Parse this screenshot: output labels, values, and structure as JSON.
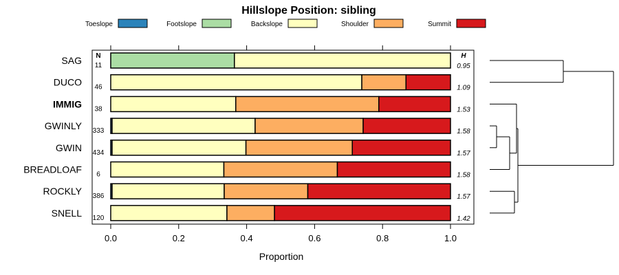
{
  "chart_data": {
    "type": "bar",
    "orientation": "horizontal",
    "stacked": true,
    "title": "Hillslope Position: sibling",
    "xlabel": "Proportion",
    "xlim": [
      0,
      1
    ],
    "xticks": [
      "0.0",
      "0.2",
      "0.4",
      "0.6",
      "0.8",
      "1.0"
    ],
    "n_header": "N",
    "h_header": "H",
    "legend_placement": "top",
    "legend": [
      {
        "name": "Toeslope",
        "color": "#2b83ba"
      },
      {
        "name": "Footslope",
        "color": "#abdda4"
      },
      {
        "name": "Backslope",
        "color": "#ffffbf"
      },
      {
        "name": "Shoulder",
        "color": "#fdae61"
      },
      {
        "name": "Summit",
        "color": "#d7191c"
      }
    ],
    "categories": [
      "SAG",
      "DUCO",
      "IMMIG",
      "GWINLY",
      "GWIN",
      "BREADLOAF",
      "ROCKLY",
      "SNELL"
    ],
    "highlighted_category": "IMMIG",
    "n": [
      "11",
      "46",
      "38",
      "333",
      "434",
      "6",
      "386",
      "120"
    ],
    "h": [
      "0.95",
      "1.09",
      "1.53",
      "1.58",
      "1.57",
      "1.58",
      "1.57",
      "1.42"
    ],
    "series": [
      {
        "name": "Toeslope",
        "values": [
          0,
          0,
          0,
          0.004,
          0.004,
          0,
          0.004,
          0
        ]
      },
      {
        "name": "Footslope",
        "values": [
          0.364,
          0,
          0,
          0,
          0,
          0,
          0,
          0
        ]
      },
      {
        "name": "Backslope",
        "values": [
          0.636,
          0.739,
          0.368,
          0.421,
          0.394,
          0.333,
          0.33,
          0.342
        ]
      },
      {
        "name": "Shoulder",
        "values": [
          0,
          0.13,
          0.421,
          0.318,
          0.313,
          0.334,
          0.246,
          0.14
        ]
      },
      {
        "name": "Summit",
        "values": [
          0,
          0.131,
          0.211,
          0.257,
          0.289,
          0.333,
          0.42,
          0.518
        ]
      }
    ],
    "dendrogram": true
  }
}
